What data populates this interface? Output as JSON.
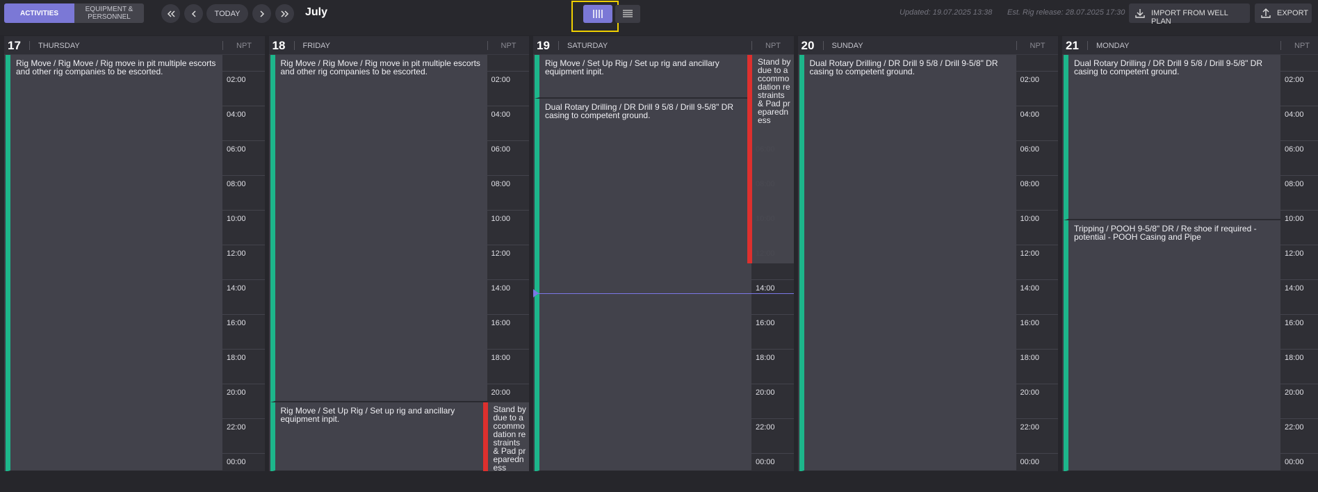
{
  "header": {
    "tabs": [
      "ACTIVITIES",
      "EQUIPMENT & PERSONNEL"
    ],
    "today": "TODAY",
    "month": "July",
    "updated": "Updated: 19.07.2025 13:38",
    "rig_release": "Est. Rig release: 28.07.2025 17:30",
    "import": "IMPORT FROM WELL PLAN",
    "export": "EXPORT"
  },
  "time_labels": [
    "02:00",
    "04:00",
    "06:00",
    "08:00",
    "10:00",
    "12:00",
    "14:00",
    "16:00",
    "18:00",
    "20:00",
    "22:00",
    "00:00"
  ],
  "days": [
    {
      "date": "17",
      "weekday": "THURSDAY",
      "npt": "NPT",
      "events": [
        "Rig Move / Rig Move / Rig move in pit multiple escorts and other rig companies to be escorted."
      ],
      "npt_events": []
    },
    {
      "date": "18",
      "weekday": "FRIDAY",
      "npt": "NPT",
      "events": [
        "Rig Move / Rig Move / Rig move in pit multiple escorts and other rig companies to be escorted.",
        "Rig Move / Set Up Rig / Set up rig and ancillary equipment inpit."
      ],
      "npt_events": [
        "Stand by due to accommodation restraints & Pad preparedness"
      ]
    },
    {
      "date": "19",
      "weekday": "SATURDAY",
      "npt": "NPT",
      "events": [
        "Rig Move / Set Up Rig / Set up rig and ancillary equipment inpit.",
        "Dual Rotary Drilling / DR Drill 9 5/8 / Drill 9-5/8\" DR casing to competent ground."
      ],
      "npt_events": [
        "Stand by due to accommodation restraints & Pad preparedness"
      ]
    },
    {
      "date": "20",
      "weekday": "SUNDAY",
      "npt": "NPT",
      "events": [
        "Dual Rotary Drilling / DR Drill 9 5/8 / Drill 9-5/8\" DR casing to competent ground."
      ],
      "npt_events": []
    },
    {
      "date": "21",
      "weekday": "MONDAY",
      "npt": "NPT",
      "events": [
        "Dual Rotary Drilling / DR Drill 9 5/8 / Drill 9-5/8\" DR casing to competent ground.",
        "Tripping / POOH 9-5/8\" DR / Re shoe if required - potential - POOH Casing and Pipe"
      ],
      "npt_events": []
    }
  ]
}
